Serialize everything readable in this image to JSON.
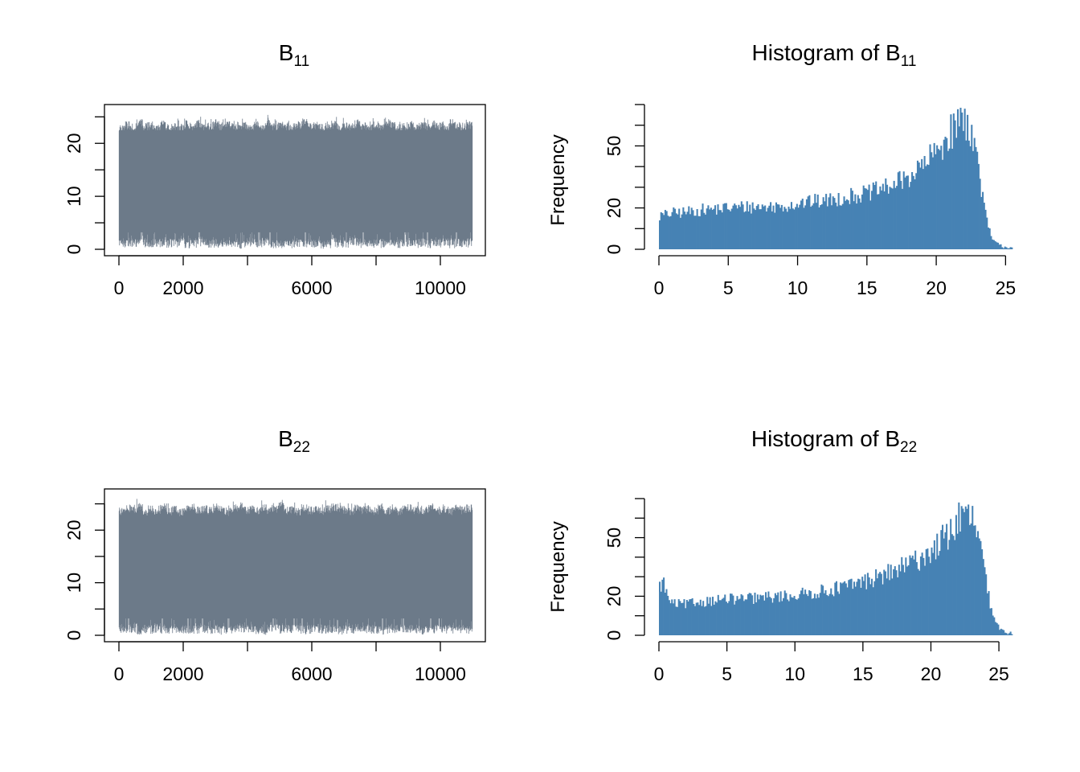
{
  "colors": {
    "trace": "#6c7a89",
    "hist": "#4682b4",
    "axis": "#000000",
    "background": "#ffffff"
  },
  "chart_data": [
    {
      "id": "trace-b11",
      "type": "line",
      "title": "B",
      "title_subscript": "11",
      "xlabel": "",
      "ylabel": "",
      "xlim": [
        0,
        11000
      ],
      "ylim": [
        0,
        25.5
      ],
      "x_ticks": [
        0,
        2000,
        4000,
        6000,
        8000,
        10000
      ],
      "x_tick_labels": [
        "0",
        "2000",
        "",
        "6000",
        "",
        "10000"
      ],
      "y_ticks": [
        0,
        5,
        10,
        15,
        20,
        25
      ],
      "y_tick_labels": [
        "0",
        "",
        "10",
        "",
        "20",
        ""
      ],
      "n_iterations": 11000,
      "band_low": [
        0.3,
        0.5,
        0.2,
        0.4,
        0.1,
        0.3,
        0.2,
        0.5,
        0.3,
        0.2,
        0.4,
        0.1,
        0.3,
        0.2,
        0.6,
        0.3,
        0.2,
        0.4,
        0.3,
        0.2,
        0.1,
        0.3,
        0.5,
        0.2,
        0.4,
        0.3,
        0.2,
        0.1,
        0.3,
        0.2,
        0.4,
        0.3,
        0.2,
        0.3,
        0.1,
        0.2,
        0.4,
        0.3,
        0.2,
        0.3,
        0.5,
        0.2,
        0.3,
        0.1,
        0.2,
        0.4,
        0.3,
        0.2,
        0.3,
        0.4,
        0.2,
        0.3,
        0.1,
        0.2,
        0.3,
        0.4,
        0.2,
        0.3,
        0.2,
        0.3
      ],
      "band_high": [
        23.5,
        24.2,
        23.8,
        24.6,
        23.9,
        24.1,
        23.6,
        24.4,
        23.8,
        24.0,
        23.7,
        24.3,
        23.9,
        24.5,
        23.8,
        24.0,
        24.7,
        23.9,
        24.2,
        23.8,
        24.1,
        24.0,
        23.7,
        24.4,
        23.9,
        24.6,
        23.8,
        24.1,
        24.0,
        23.9,
        24.2,
        24.8,
        23.9,
        24.1,
        23.7,
        24.0,
        24.3,
        23.8,
        24.1,
        23.9,
        24.5,
        24.0,
        23.8,
        24.2,
        23.9,
        24.9,
        24.1,
        23.8,
        24.0,
        24.3,
        23.9,
        24.1,
        23.8,
        24.4,
        24.0,
        23.9,
        24.6,
        24.1,
        23.9,
        24.2
      ],
      "dips": [
        [
          700,
          4.5
        ],
        [
          2500,
          4.0
        ],
        [
          4350,
          5.3
        ],
        [
          4700,
          4.8
        ],
        [
          5800,
          4.2
        ],
        [
          7600,
          4.5
        ],
        [
          8900,
          9.0
        ],
        [
          9600,
          4.3
        ],
        [
          10500,
          6.3
        ]
      ]
    },
    {
      "id": "hist-b11",
      "type": "bar",
      "title": "Histogram of B",
      "title_subscript": "11",
      "xlabel": "",
      "ylabel": "Frequency",
      "xlim": [
        0,
        25.5
      ],
      "ylim": [
        0,
        70
      ],
      "x_ticks": [
        0,
        5,
        10,
        15,
        20,
        25
      ],
      "x_tick_labels": [
        "0",
        "5",
        "10",
        "15",
        "20",
        "25"
      ],
      "y_ticks": [
        0,
        10,
        20,
        30,
        40,
        50,
        60,
        70
      ],
      "y_tick_labels": [
        "0",
        "",
        "20",
        "",
        "",
        "50",
        "",
        ""
      ],
      "bin_start": 0,
      "bin_width": 0.1,
      "profile": [
        [
          0,
          16
        ],
        [
          1,
          17.5
        ],
        [
          2,
          18
        ],
        [
          3,
          19
        ],
        [
          4,
          19.5
        ],
        [
          5,
          20
        ],
        [
          6,
          20.5
        ],
        [
          7,
          20.5
        ],
        [
          8,
          20.5
        ],
        [
          9,
          21
        ],
        [
          10,
          22
        ],
        [
          11,
          23
        ],
        [
          12,
          23.5
        ],
        [
          13,
          24.5
        ],
        [
          14,
          26
        ],
        [
          15,
          27
        ],
        [
          16,
          29
        ],
        [
          17,
          31.5
        ],
        [
          18,
          35
        ],
        [
          19,
          40
        ],
        [
          20,
          47
        ],
        [
          21,
          56
        ],
        [
          21.5,
          61
        ],
        [
          22,
          63
        ],
        [
          22.5,
          58
        ],
        [
          23,
          42
        ],
        [
          23.5,
          18
        ],
        [
          24,
          5
        ],
        [
          24.5,
          2
        ],
        [
          25,
          1
        ],
        [
          25.5,
          1
        ]
      ],
      "peak_value": 68
    },
    {
      "id": "trace-b22",
      "type": "line",
      "title": "B",
      "title_subscript": "22",
      "xlabel": "",
      "ylabel": "",
      "xlim": [
        0,
        11000
      ],
      "ylim": [
        0,
        26
      ],
      "x_ticks": [
        0,
        2000,
        4000,
        6000,
        8000,
        10000
      ],
      "x_tick_labels": [
        "0",
        "2000",
        "",
        "6000",
        "",
        "10000"
      ],
      "y_ticks": [
        0,
        5,
        10,
        15,
        20,
        25
      ],
      "y_tick_labels": [
        "0",
        "",
        "10",
        "",
        "20",
        ""
      ],
      "n_iterations": 11000,
      "band_low": [
        0.3,
        0.2,
        0.4,
        0.1,
        0.3,
        0.2,
        0.5,
        0.3,
        0.2,
        0.4,
        0.1,
        0.3,
        0.2,
        0.3,
        0.4,
        0.2,
        0.3,
        0.1,
        0.2,
        0.3,
        0.4,
        0.2,
        0.3,
        0.2,
        0.1,
        0.3,
        0.4,
        0.2,
        0.3,
        0.2,
        0.3,
        0.1,
        0.2,
        0.4,
        0.3,
        0.2,
        0.3,
        0.1,
        0.2,
        0.3,
        0.4,
        0.2,
        0.3,
        0.2,
        0.1,
        0.3,
        0.2,
        0.4,
        0.3,
        0.2,
        0.3,
        0.1,
        0.2,
        0.3,
        0.4,
        0.2,
        0.3,
        0.2,
        0.3,
        0.2
      ],
      "band_high": [
        24.4,
        25.0,
        24.6,
        25.2,
        24.3,
        24.8,
        24.5,
        25.1,
        24.4,
        24.9,
        24.2,
        24.7,
        25.3,
        24.5,
        24.8,
        24.4,
        25.0,
        24.6,
        24.3,
        24.9,
        25.2,
        24.5,
        24.7,
        24.4,
        25.1,
        24.6,
        24.8,
        25.4,
        24.5,
        24.7,
        24.3,
        25.0,
        24.6,
        24.8,
        24.4,
        24.9,
        25.1,
        24.5,
        24.7,
        24.3,
        25.0,
        24.6,
        24.8,
        24.4,
        25.2,
        24.5,
        24.9,
        24.3,
        24.7,
        25.0,
        24.6,
        24.4,
        24.8,
        25.1,
        24.5,
        24.7,
        24.3,
        24.9,
        24.6,
        25.0
      ],
      "dips": [
        [
          300,
          3.8
        ],
        [
          1350,
          7.0
        ],
        [
          2150,
          4.8
        ],
        [
          2600,
          4.3
        ],
        [
          3400,
          4.2
        ],
        [
          4800,
          5.3
        ],
        [
          5450,
          7.5
        ],
        [
          5700,
          6.2
        ],
        [
          8200,
          4.5
        ],
        [
          8850,
          7.2
        ],
        [
          9700,
          4.0
        ]
      ]
    },
    {
      "id": "hist-b22",
      "type": "bar",
      "title": "Histogram of B",
      "title_subscript": "22",
      "xlabel": "",
      "ylabel": "Frequency",
      "xlim": [
        0,
        26
      ],
      "ylim": [
        0,
        70
      ],
      "x_ticks": [
        0,
        5,
        10,
        15,
        20,
        25
      ],
      "x_tick_labels": [
        "0",
        "5",
        "10",
        "15",
        "20",
        "25"
      ],
      "y_ticks": [
        0,
        10,
        20,
        30,
        40,
        50,
        60,
        70
      ],
      "y_tick_labels": [
        "0",
        "",
        "20",
        "",
        "",
        "50",
        "",
        ""
      ],
      "bin_start": 0,
      "bin_width": 0.1,
      "profile": [
        [
          0,
          24
        ],
        [
          0.3,
          28
        ],
        [
          0.6,
          20
        ],
        [
          1,
          16
        ],
        [
          2,
          16
        ],
        [
          3,
          17
        ],
        [
          4,
          18
        ],
        [
          5,
          18.5
        ],
        [
          6,
          18.5
        ],
        [
          7,
          19
        ],
        [
          8,
          19.5
        ],
        [
          9,
          20
        ],
        [
          10,
          20.5
        ],
        [
          11,
          21.5
        ],
        [
          12,
          22.5
        ],
        [
          13,
          24
        ],
        [
          14,
          25.5
        ],
        [
          15,
          27.5
        ],
        [
          16,
          29.5
        ],
        [
          17,
          32
        ],
        [
          18,
          35
        ],
        [
          19,
          38.5
        ],
        [
          20,
          43
        ],
        [
          21,
          50
        ],
        [
          22,
          57
        ],
        [
          22.5,
          61
        ],
        [
          23,
          60
        ],
        [
          23.5,
          50
        ],
        [
          24,
          30
        ],
        [
          24.5,
          10
        ],
        [
          25,
          4
        ],
        [
          25.5,
          1.5
        ],
        [
          26,
          1
        ]
      ],
      "peak_value": 68
    }
  ]
}
